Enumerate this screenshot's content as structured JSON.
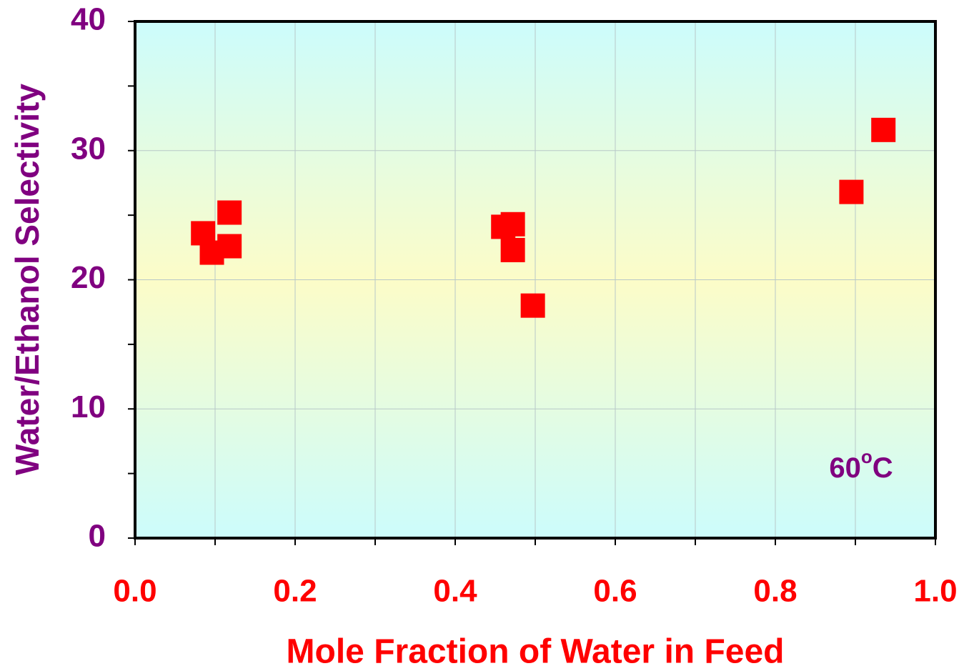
{
  "chart_data": {
    "type": "scatter",
    "x_label": "Mole Fraction of Water in Feed",
    "y_label": "Water/Ethanol Selectivity",
    "annotation": [
      "60",
      "o",
      "C"
    ],
    "series": [
      {
        "color": "#ff0000",
        "x": [
          0.085,
          0.096,
          0.118,
          0.118,
          0.46,
          0.472,
          0.472,
          0.497,
          0.895,
          0.935
        ],
        "values": [
          23.6,
          22.1,
          25.2,
          22.6,
          24.1,
          24.3,
          22.3,
          18.0,
          26.8,
          31.6
        ]
      }
    ],
    "xlim": [
      0,
      1
    ],
    "ylim": [
      0,
      40
    ],
    "xticks": [
      {
        "value": 0,
        "label": "0.0"
      },
      {
        "value": 0.2,
        "label": "0.2"
      },
      {
        "value": 0.4,
        "label": "0.4"
      },
      {
        "value": 0.6,
        "label": "0.6"
      },
      {
        "value": 0.8,
        "label": "0.8"
      },
      {
        "value": 1,
        "label": "1.0"
      }
    ],
    "xminorticks": [
      0.1,
      0.3,
      0.5,
      0.7,
      0.9
    ],
    "yticks": [
      0,
      10,
      20,
      30,
      40
    ],
    "yminorticks": [
      5,
      15,
      25,
      35
    ],
    "grid": true
  }
}
